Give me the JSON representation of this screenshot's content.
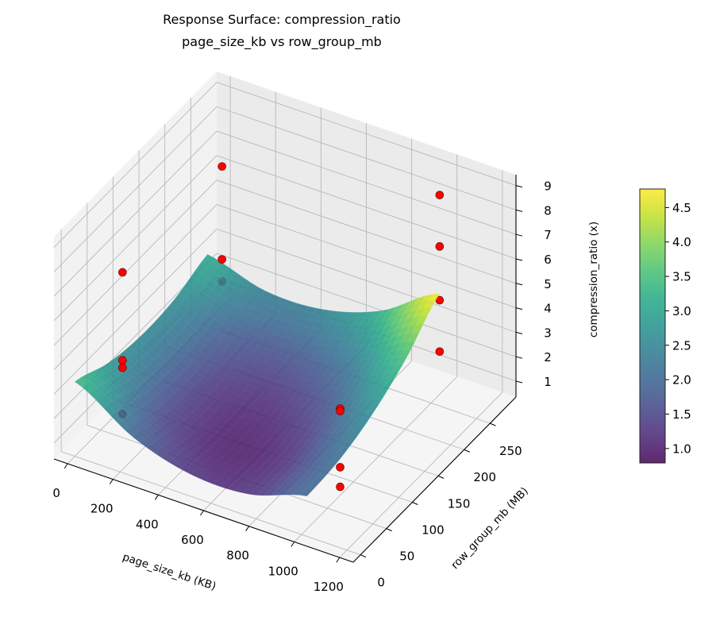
{
  "chart_data": {
    "type": "surface3d",
    "title": "Response Surface: compression_ratio",
    "subtitle": "page_size_kb vs row_group_mb",
    "xlabel": "page_size_kb (KB)",
    "ylabel": "row_group_mb (MB)",
    "zlabel": "compression_ratio (x)",
    "xlim": [
      -60,
      1260
    ],
    "ylim": [
      -14,
      300
    ],
    "zlim": [
      0.35,
      9.44
    ],
    "xticks": [
      0,
      200,
      400,
      600,
      800,
      1000,
      1200
    ],
    "yticks": [
      0,
      50,
      100,
      150,
      200,
      250
    ],
    "zticks": [
      1,
      2,
      3,
      4,
      5,
      6,
      7,
      8,
      9
    ],
    "grid": true,
    "colormap": "viridis",
    "surface_alpha": 0.85,
    "surface": {
      "x": [
        0,
        256,
        512,
        768,
        1024
      ],
      "y": [
        0,
        64,
        128,
        192,
        256
      ],
      "z": [
        [
          3.4,
          1.96,
          1.25,
          1.26,
          2.0
        ],
        [
          2.78,
          1.53,
          1.01,
          1.21,
          2.15
        ],
        [
          2.53,
          1.47,
          1.14,
          1.53,
          2.66
        ],
        [
          2.63,
          1.76,
          1.62,
          2.21,
          3.53
        ],
        [
          3.1,
          2.42,
          2.48,
          3.25,
          4.76
        ]
      ]
    },
    "points": {
      "color": "#ff0000",
      "data": [
        {
          "x": 64,
          "y": 64,
          "z": 6.7
        },
        {
          "x": 64,
          "y": 64,
          "z": 3.1
        },
        {
          "x": 64,
          "y": 64,
          "z": 2.8
        },
        {
          "x": 64,
          "y": 64,
          "z": 0.9
        },
        {
          "x": 64,
          "y": 256,
          "z": 6.9
        },
        {
          "x": 64,
          "y": 256,
          "z": 3.1
        },
        {
          "x": 64,
          "y": 256,
          "z": 2.2
        },
        {
          "x": 1024,
          "y": 64,
          "z": 4.2
        },
        {
          "x": 1024,
          "y": 64,
          "z": 4.1
        },
        {
          "x": 1024,
          "y": 64,
          "z": 1.8
        },
        {
          "x": 1024,
          "y": 64,
          "z": 1.0
        },
        {
          "x": 1024,
          "y": 256,
          "z": 8.8
        },
        {
          "x": 1024,
          "y": 256,
          "z": 6.7
        },
        {
          "x": 1024,
          "y": 256,
          "z": 4.5
        },
        {
          "x": 1024,
          "y": 256,
          "z": 2.4
        }
      ]
    },
    "colorbar": {
      "range": [
        0.79,
        4.77
      ],
      "ticks": [
        "1.0",
        "1.5",
        "2.0",
        "2.5",
        "3.0",
        "3.5",
        "4.0",
        "4.5"
      ]
    }
  }
}
